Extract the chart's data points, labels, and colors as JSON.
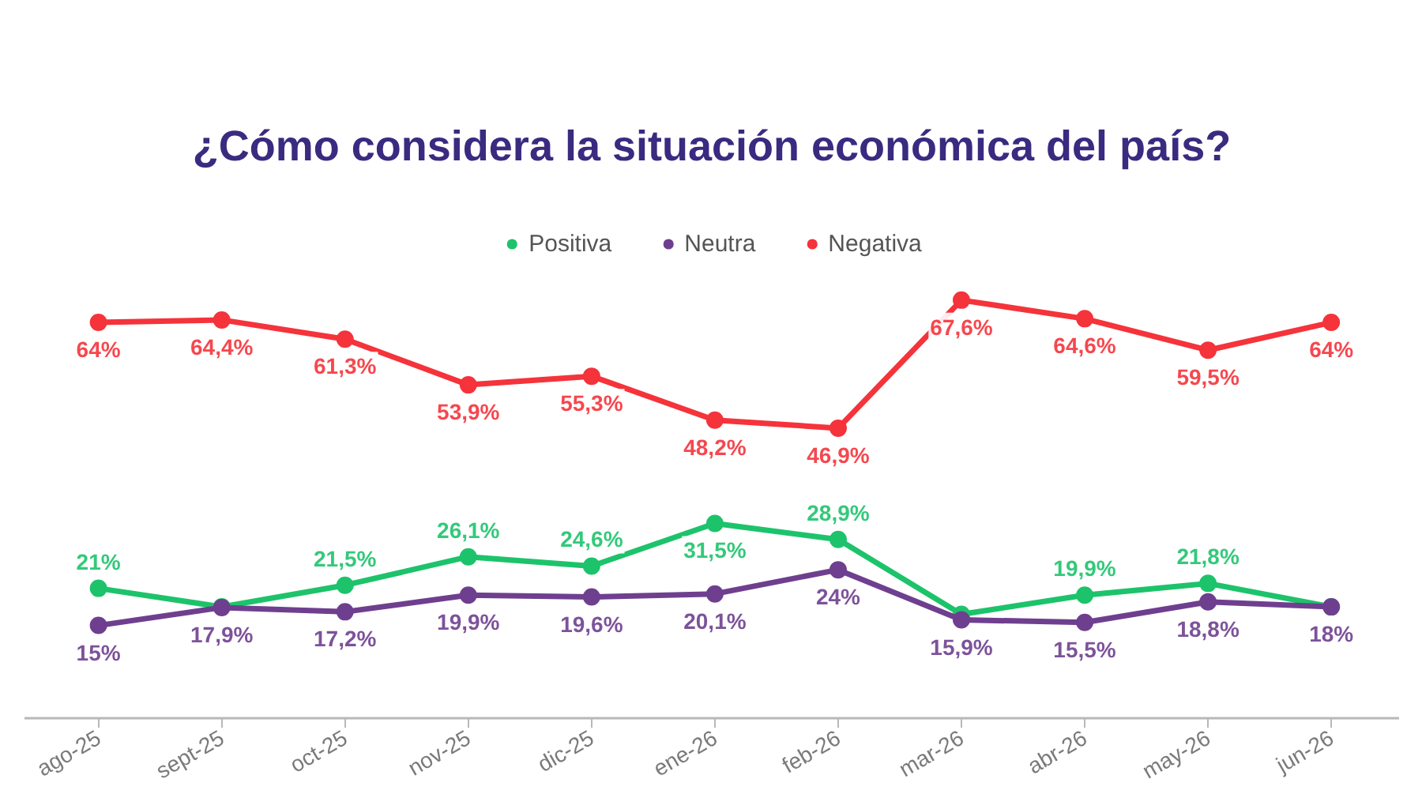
{
  "chart_data": {
    "type": "line",
    "title": "¿Cómo considera la situación económica del país?",
    "categories": [
      "ago-25",
      "sept-25",
      "oct-25",
      "nov-25",
      "dic-25",
      "ene-26",
      "feb-26",
      "mar-26",
      "abr-26",
      "may-26",
      "jun-26"
    ],
    "series": [
      {
        "name": "Positiva",
        "color": "#1dc36b",
        "values": [
          21,
          18,
          21.5,
          26.1,
          24.6,
          31.5,
          28.9,
          16.8,
          19.9,
          21.8,
          18
        ],
        "value_labels": [
          "21%",
          null,
          "21,5%",
          "26,1%",
          "24,6%",
          "31,5%",
          "28,9%",
          null,
          "19,9%",
          "21,8%",
          null
        ]
      },
      {
        "name": "Neutra",
        "color": "#6f3f8f",
        "values": [
          15,
          17.9,
          17.2,
          19.9,
          19.6,
          20.1,
          24,
          15.9,
          15.5,
          18.8,
          18
        ],
        "value_labels": [
          "15%",
          "17,9%",
          "17,2%",
          "19,9%",
          "19,6%",
          "20,1%",
          "24%",
          "15,9%",
          "15,5%",
          "18,8%",
          "18%"
        ]
      },
      {
        "name": "Negativa",
        "color": "#f5333b",
        "values": [
          64,
          64.4,
          61.3,
          53.9,
          55.3,
          48.2,
          46.9,
          67.6,
          64.6,
          59.5,
          64
        ],
        "value_labels": [
          "64%",
          "64,4%",
          "61,3%",
          "53,9%",
          "55,3%",
          "48,2%",
          "46,9%",
          "67,6%",
          "64,6%",
          "59,5%",
          "64%"
        ]
      }
    ],
    "legend": "top",
    "marker": "circle",
    "line_style": "solid",
    "grid": false
  }
}
